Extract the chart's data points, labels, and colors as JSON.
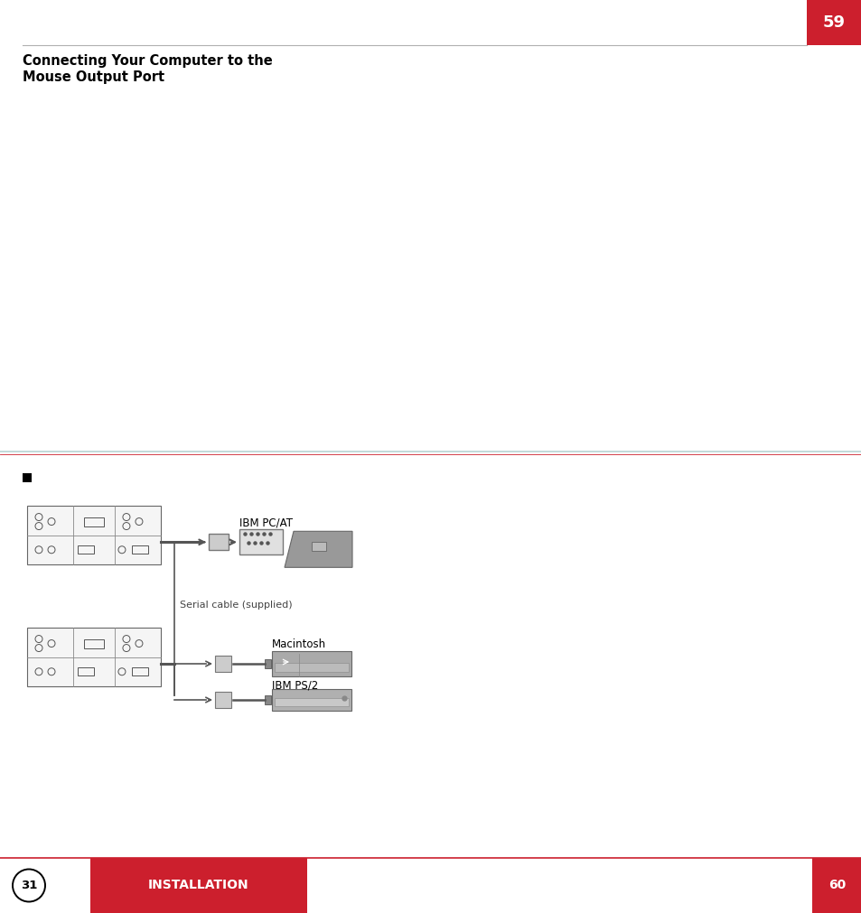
{
  "title_line1": "Connecting Your Computer to the",
  "title_line2": "Mouse Output Port",
  "page_num_top": "59",
  "footer_label": "INSTALLATION",
  "page_num_bottom_left": "31",
  "page_num_bottom_right": "60",
  "serial_cable_label": "Serial cable (supplied)",
  "ibm_pc_at_label": "IBM PC/AT",
  "macintosh_label": "Macintosh",
  "ibm_ps2_label": "IBM PS/2",
  "bg_color": "#ffffff",
  "red_color": "#cc1f2d",
  "line_gray": "#b0b0b0",
  "mid_line_color": "#aaaaaa",
  "mid_line_red": "#cc1f2d"
}
